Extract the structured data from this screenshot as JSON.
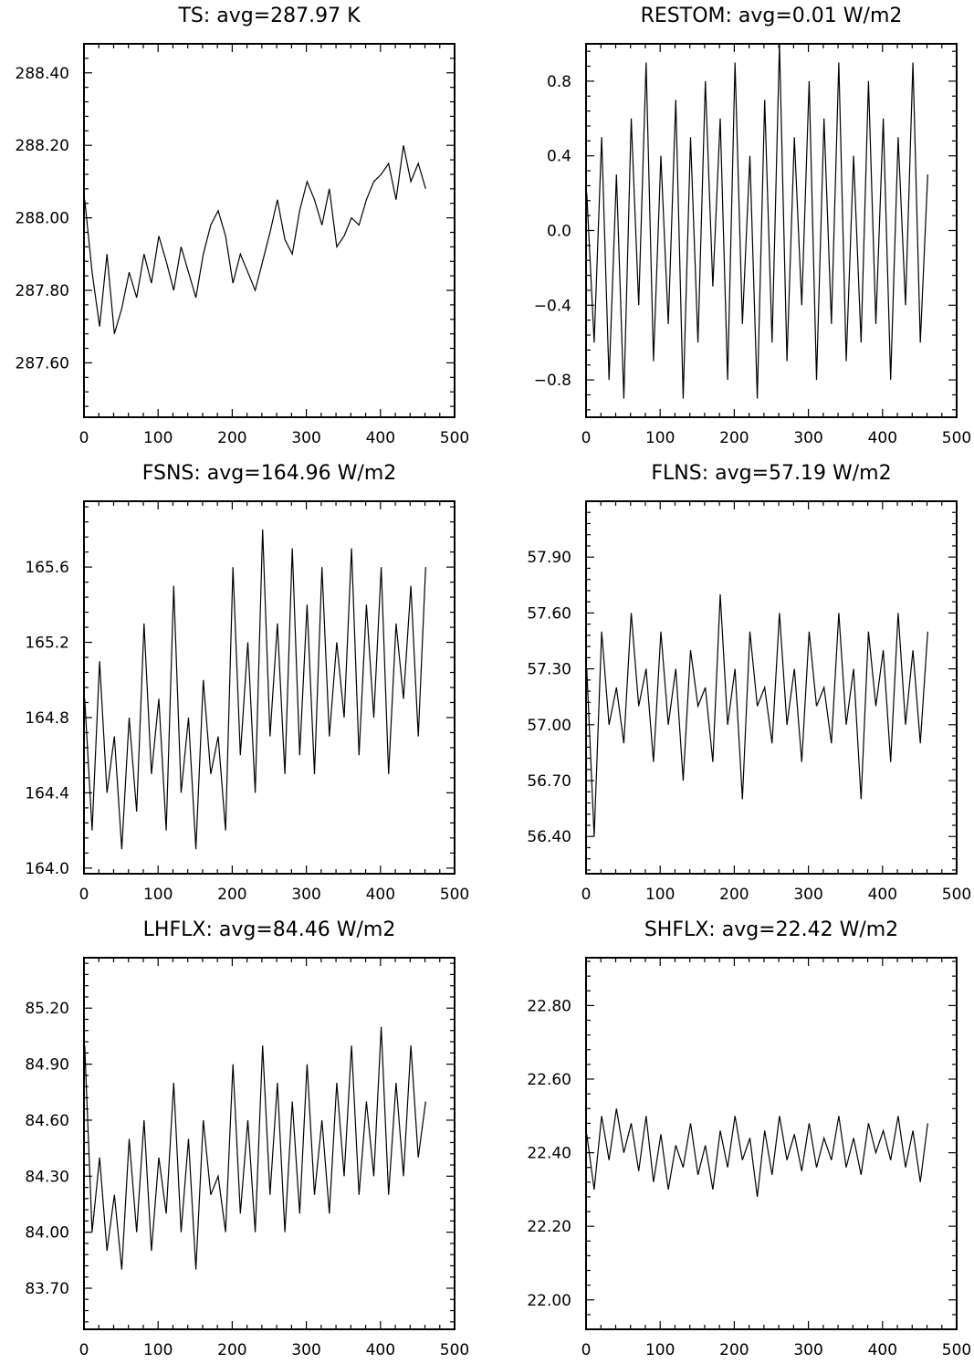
{
  "chart_data": [
    {
      "type": "line",
      "title": "TS: avg=287.97 K",
      "xlabel": "",
      "ylabel": "",
      "xlim": [
        0,
        500
      ],
      "ylim": [
        287.45,
        288.48
      ],
      "xticks": [
        0,
        100,
        200,
        300,
        400,
        500
      ],
      "yticks": [
        287.6,
        287.8,
        288.0,
        288.2,
        288.4
      ],
      "ytick_labels": [
        "287.60",
        "287.80",
        "288.00",
        "288.20",
        "288.40"
      ],
      "grid": false,
      "series": [
        {
          "x_start": 1,
          "x_step": 10,
          "values": [
            288.05,
            287.85,
            287.7,
            287.9,
            287.68,
            287.75,
            287.85,
            287.78,
            287.9,
            287.82,
            287.95,
            287.88,
            287.8,
            287.92,
            287.85,
            287.78,
            287.9,
            287.98,
            288.02,
            287.95,
            287.82,
            287.9,
            287.85,
            287.8,
            287.88,
            287.96,
            288.05,
            287.94,
            287.9,
            288.02,
            288.1,
            288.05,
            287.98,
            288.08,
            287.92,
            287.95,
            288.0,
            287.98,
            288.05,
            288.1,
            288.12,
            288.15,
            288.05,
            288.2,
            288.1,
            288.15,
            288.08
          ]
        }
      ]
    },
    {
      "type": "line",
      "title": "RESTOM: avg=0.01 W/m2",
      "xlabel": "",
      "ylabel": "",
      "xlim": [
        0,
        500
      ],
      "ylim": [
        -1.0,
        1.0
      ],
      "xticks": [
        0,
        100,
        200,
        300,
        400,
        500
      ],
      "yticks": [
        -0.8,
        -0.4,
        0.0,
        0.4,
        0.8
      ],
      "ytick_labels": [
        "−0.8",
        "−0.4",
        "0.0",
        "0.4",
        "0.8"
      ],
      "grid": false,
      "series": [
        {
          "x_start": 1,
          "x_step": 10,
          "values": [
            0.2,
            -0.6,
            0.5,
            -0.8,
            0.3,
            -0.9,
            0.6,
            -0.4,
            0.9,
            -0.7,
            0.4,
            -0.5,
            0.7,
            -0.9,
            0.5,
            -0.6,
            0.8,
            -0.3,
            0.6,
            -0.8,
            0.9,
            -0.5,
            0.4,
            -0.9,
            0.7,
            -0.6,
            1.0,
            -0.7,
            0.5,
            -0.4,
            0.8,
            -0.8,
            0.6,
            -0.5,
            0.9,
            -0.7,
            0.4,
            -0.6,
            0.8,
            -0.5,
            0.6,
            -0.8,
            0.5,
            -0.4,
            0.9,
            -0.6,
            0.3
          ]
        }
      ]
    },
    {
      "type": "line",
      "title": "FSNS: avg=164.96 W/m2",
      "xlabel": "",
      "ylabel": "",
      "xlim": [
        0,
        500
      ],
      "ylim": [
        163.97,
        165.95
      ],
      "xticks": [
        0,
        100,
        200,
        300,
        400,
        500
      ],
      "yticks": [
        164.0,
        164.4,
        164.8,
        165.2,
        165.6
      ],
      "ytick_labels": [
        "164.0",
        "164.4",
        "164.8",
        "165.2",
        "165.6"
      ],
      "grid": false,
      "series": [
        {
          "x_start": 1,
          "x_step": 10,
          "values": [
            164.9,
            164.2,
            165.1,
            164.4,
            164.7,
            164.1,
            164.8,
            164.3,
            165.3,
            164.5,
            164.9,
            164.2,
            165.5,
            164.4,
            164.8,
            164.1,
            165.0,
            164.5,
            164.7,
            164.2,
            165.6,
            164.6,
            165.2,
            164.4,
            165.8,
            164.7,
            165.3,
            164.5,
            165.7,
            164.6,
            165.4,
            164.5,
            165.6,
            164.7,
            165.2,
            164.8,
            165.7,
            164.6,
            165.4,
            164.8,
            165.6,
            164.5,
            165.3,
            164.9,
            165.5,
            164.7,
            165.6
          ]
        }
      ]
    },
    {
      "type": "line",
      "title": "FLNS: avg=57.19 W/m2",
      "xlabel": "",
      "ylabel": "",
      "xlim": [
        0,
        500
      ],
      "ylim": [
        56.2,
        58.2
      ],
      "xticks": [
        0,
        100,
        200,
        300,
        400,
        500
      ],
      "yticks": [
        56.4,
        56.7,
        57.0,
        57.3,
        57.6,
        57.9
      ],
      "ytick_labels": [
        "56.40",
        "56.70",
        "57.00",
        "57.30",
        "57.60",
        "57.90"
      ],
      "grid": false,
      "series": [
        {
          "x_start": 1,
          "x_step": 10,
          "values": [
            57.3,
            56.4,
            57.5,
            57.0,
            57.2,
            56.9,
            57.6,
            57.1,
            57.3,
            56.8,
            57.5,
            57.0,
            57.3,
            56.7,
            57.4,
            57.1,
            57.2,
            56.8,
            57.7,
            57.0,
            57.3,
            56.6,
            57.5,
            57.1,
            57.2,
            56.9,
            57.6,
            57.0,
            57.3,
            56.8,
            57.5,
            57.1,
            57.2,
            56.9,
            57.6,
            57.0,
            57.3,
            56.6,
            57.5,
            57.1,
            57.4,
            56.8,
            57.6,
            57.0,
            57.4,
            56.9,
            57.5
          ]
        }
      ]
    },
    {
      "type": "line",
      "title": "LHFLX: avg=84.46 W/m2",
      "xlabel": "",
      "ylabel": "",
      "xlim": [
        0,
        500
      ],
      "ylim": [
        83.48,
        85.47
      ],
      "xticks": [
        0,
        100,
        200,
        300,
        400,
        500
      ],
      "yticks": [
        83.7,
        84.0,
        84.3,
        84.6,
        84.9,
        85.2
      ],
      "ytick_labels": [
        "83.70",
        "84.00",
        "84.30",
        "84.60",
        "84.90",
        "85.20"
      ],
      "grid": false,
      "series": [
        {
          "x_start": 1,
          "x_step": 10,
          "values": [
            85.0,
            84.0,
            84.4,
            83.9,
            84.2,
            83.8,
            84.5,
            84.0,
            84.6,
            83.9,
            84.4,
            84.1,
            84.8,
            84.0,
            84.5,
            83.8,
            84.6,
            84.2,
            84.3,
            84.0,
            84.9,
            84.1,
            84.6,
            84.0,
            85.0,
            84.2,
            84.8,
            84.0,
            84.7,
            84.1,
            84.9,
            84.2,
            84.6,
            84.1,
            84.8,
            84.3,
            85.0,
            84.2,
            84.7,
            84.3,
            85.1,
            84.2,
            84.8,
            84.3,
            85.0,
            84.4,
            84.7
          ]
        }
      ]
    },
    {
      "type": "line",
      "title": "SHFLX: avg=22.42 W/m2",
      "xlabel": "",
      "ylabel": "",
      "xlim": [
        0,
        500
      ],
      "ylim": [
        21.92,
        22.93
      ],
      "xticks": [
        0,
        100,
        200,
        300,
        400,
        500
      ],
      "yticks": [
        22.0,
        22.2,
        22.4,
        22.6,
        22.8
      ],
      "ytick_labels": [
        "22.00",
        "22.20",
        "22.40",
        "22.60",
        "22.80"
      ],
      "grid": false,
      "series": [
        {
          "x_start": 1,
          "x_step": 10,
          "values": [
            22.45,
            22.3,
            22.5,
            22.38,
            22.52,
            22.4,
            22.48,
            22.35,
            22.5,
            22.32,
            22.45,
            22.3,
            22.42,
            22.36,
            22.48,
            22.34,
            22.42,
            22.3,
            22.46,
            22.36,
            22.5,
            22.38,
            22.44,
            22.28,
            22.46,
            22.34,
            22.5,
            22.38,
            22.45,
            22.35,
            22.48,
            22.36,
            22.44,
            22.38,
            22.5,
            22.36,
            22.44,
            22.34,
            22.48,
            22.4,
            22.46,
            22.38,
            22.5,
            22.36,
            22.46,
            22.32,
            22.48
          ]
        }
      ]
    }
  ]
}
